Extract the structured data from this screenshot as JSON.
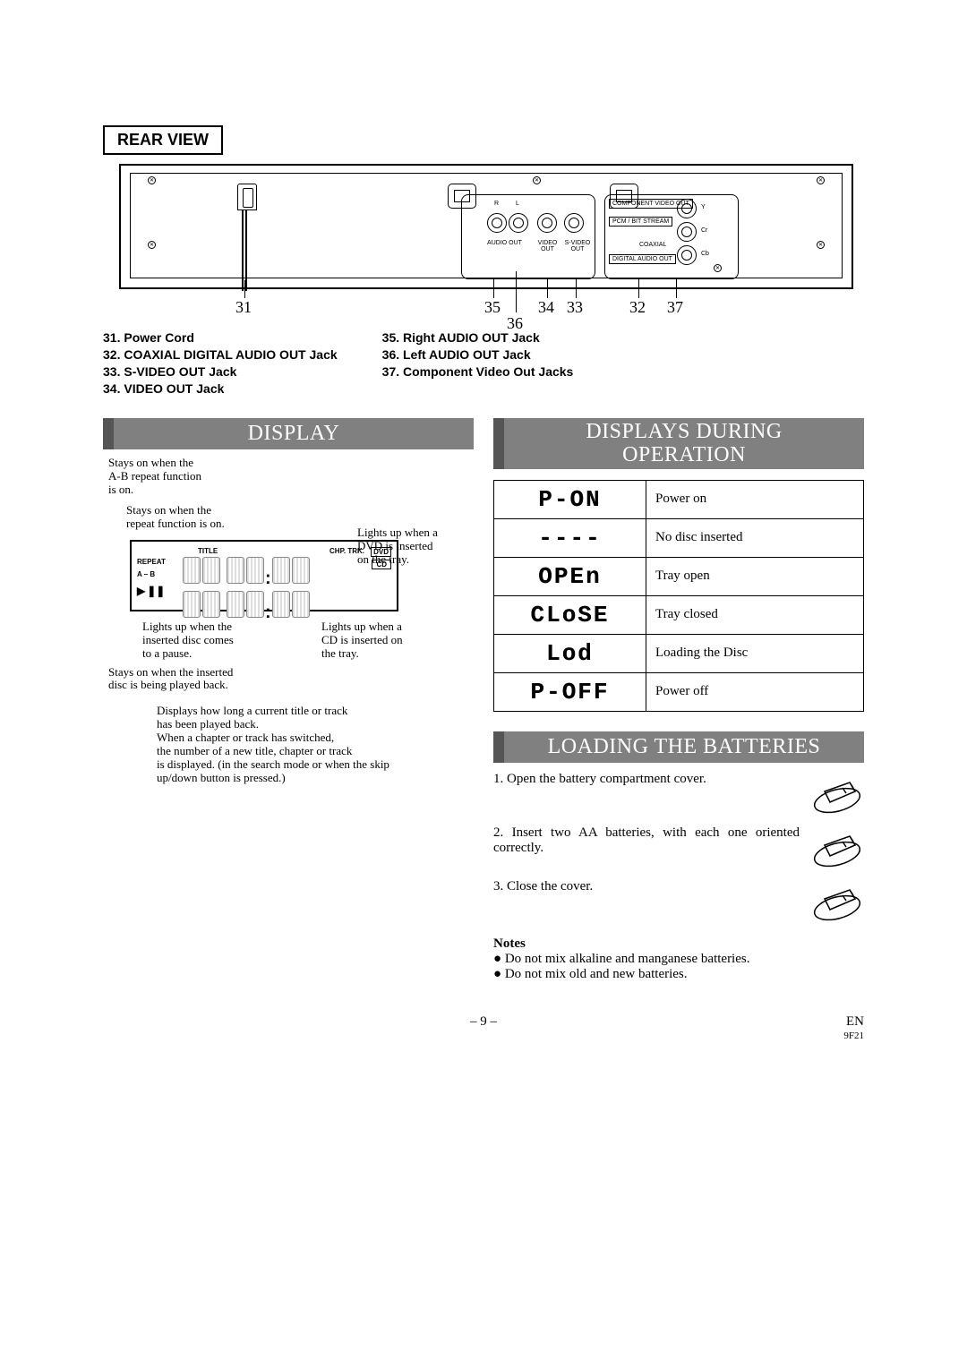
{
  "rear_view": {
    "heading": "REAR VIEW",
    "port_labels": {
      "audio_r": "R",
      "audio_l": "L",
      "audio_out": "AUDIO OUT",
      "video_out": "VIDEO OUT",
      "s_video_out": "S-VIDEO OUT",
      "component_video_out": "COMPONENT VIDEO OUT",
      "pcm_bitstream": "PCM / BIT STREAM",
      "coaxial": "COAXIAL",
      "digital_audio_out": "DIGITAL AUDIO OUT",
      "y": "Y",
      "cr": "Cr",
      "cb": "Cb"
    },
    "callouts": {
      "31": "31",
      "32": "32",
      "33": "33",
      "34": "34",
      "35": "35",
      "36": "36",
      "37": "37"
    },
    "legend_left": [
      "31.  Power Cord",
      "32.  COAXIAL DIGITAL AUDIO OUT Jack",
      "33.  S-VIDEO OUT Jack",
      "34.  VIDEO OUT Jack"
    ],
    "legend_right": [
      "35.  Right AUDIO OUT Jack",
      "36.  Left AUDIO OUT Jack",
      "37.  Component Video Out Jacks"
    ]
  },
  "display": {
    "heading": "DISPLAY",
    "annotations": {
      "ab_repeat": "Stays on when the\nA-B repeat function\nis on.",
      "repeat": "Stays on when the\nrepeat function is on.",
      "dvd": "Lights up when a\nDVD is inserted\non the tray.",
      "pause": "Lights up when the\ninserted disc comes\nto a pause.",
      "cd": "Lights up when a\nCD is inserted on\nthe tray.",
      "play": "Stays on when the inserted\ndisc is being played back.",
      "time": "Displays how long a current title or track\nhas been played back.\nWhen a chapter or track has switched,\nthe number of a new title, chapter or track\nis displayed. (in the search mode or when the skip\nup/down button is pressed.)"
    },
    "box_labels": {
      "title": "TITLE",
      "chptrk": "CHP. TRK.",
      "dvd": "DVD",
      "cd": "CD",
      "repeat": "REPEAT",
      "ab": "A – B",
      "play_icon": "▶",
      "pause_icon": "❚❚"
    }
  },
  "during_operation": {
    "heading": "DISPLAYS DURING\nOPERATION",
    "rows": [
      {
        "seg": "P-ON",
        "label": "Power on"
      },
      {
        "seg": "----",
        "label": "No disc inserted"
      },
      {
        "seg": "OPEn",
        "label": "Tray open"
      },
      {
        "seg": "CLoSE",
        "label": "Tray closed"
      },
      {
        "seg": "Lod",
        "label": "Loading the Disc"
      },
      {
        "seg": "P-OFF",
        "label": "Power off"
      }
    ]
  },
  "batteries": {
    "heading": "LOADING THE BATTERIES",
    "steps": [
      "Open the battery compartment cover.",
      "Insert two AA batteries, with each one oriented correctly.",
      "Close the cover."
    ],
    "notes_heading": "Notes",
    "notes": [
      "Do not mix alkaline and manganese batteries.",
      "Do not mix old and new batteries."
    ]
  },
  "footer": {
    "page": "– 9 –",
    "lang": "EN",
    "code": "9F21"
  }
}
